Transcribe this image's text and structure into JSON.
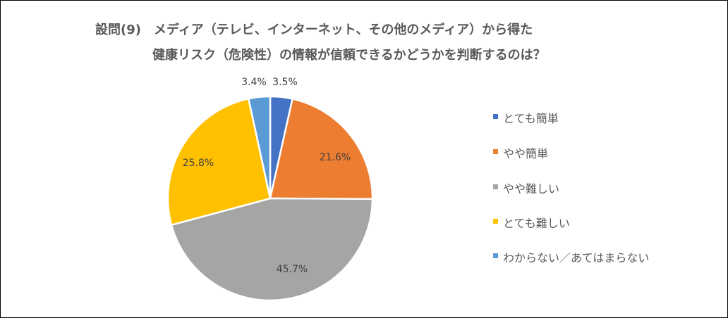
{
  "chart_data": {
    "type": "pie",
    "title_lines": [
      "設問(9)　メディア（テレビ、インターネット、その他のメディア）から得た",
      "健康リスク（危険性）の情報が信頼できるかどうかを判断するのは？"
    ],
    "categories": [
      "とても簡単",
      "やや簡単",
      "やや難しい",
      "とても難しい",
      "わからない／あてはまらない"
    ],
    "values": [
      3.5,
      21.6,
      45.7,
      25.8,
      3.4
    ],
    "value_labels": [
      "3.5%",
      "21.6%",
      "45.7%",
      "25.8%",
      "3.4%"
    ],
    "colors": [
      "#4472C4",
      "#ED7D31",
      "#A5A5A5",
      "#FFC000",
      "#5B9BD5"
    ],
    "start_angle": "12 o'clock",
    "direction": "clockwise",
    "legend_position": "right"
  }
}
